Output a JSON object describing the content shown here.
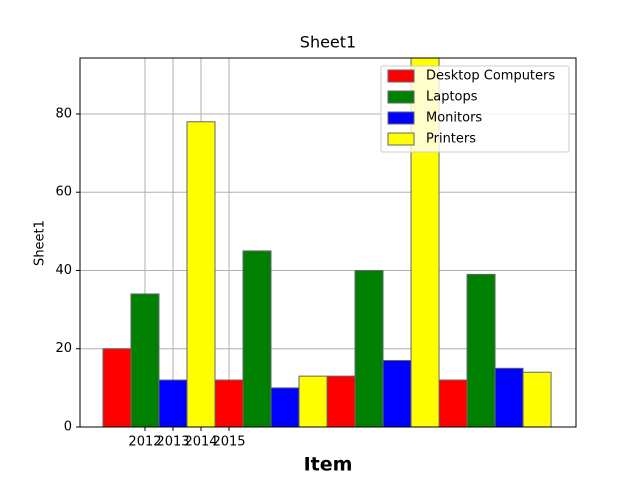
{
  "chart_data": {
    "type": "bar",
    "title": "Sheet1",
    "x_label": "Item",
    "y_label": "Sheet1",
    "series": [
      {
        "name": "Desktop Computers",
        "color": "#ff0000",
        "x": [
          2011,
          2015,
          2019,
          2023
        ],
        "values": [
          20,
          12,
          13,
          12
        ]
      },
      {
        "name": "Laptops",
        "color": "#008000",
        "x": [
          2012,
          2016,
          2020,
          2024
        ],
        "values": [
          34,
          45,
          40,
          39
        ]
      },
      {
        "name": "Monitors",
        "color": "#0000ff",
        "x": [
          2013,
          2017,
          2021,
          2025
        ],
        "values": [
          12,
          10,
          17,
          15
        ]
      },
      {
        "name": "Printers",
        "color": "#ffff00",
        "x": [
          2014,
          2018,
          2022,
          2026
        ],
        "values": [
          78,
          13,
          95,
          14
        ]
      }
    ],
    "xlim": [
      2009.68,
      2027.39
    ],
    "xticks": [
      2012,
      2013,
      2014,
      2015
    ],
    "ylim": [
      0,
      94.3
    ],
    "yticks": [
      0,
      20,
      40,
      60,
      80
    ],
    "grid": true,
    "legend": "upper right"
  }
}
